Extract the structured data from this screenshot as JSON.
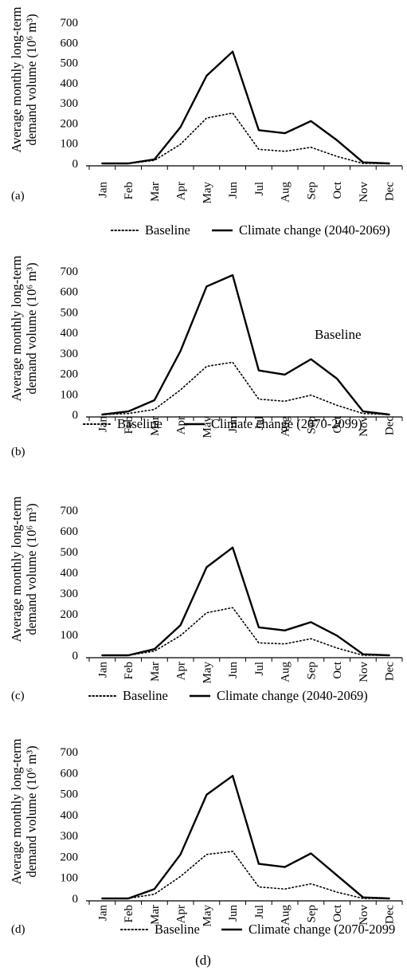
{
  "bottom_caption": "(d)",
  "chart_data": [
    {
      "type": "line",
      "panel_label": "(a)",
      "ylabel_lines": [
        "Average monthly long-term",
        "demand volume (10⁶ m³)"
      ],
      "categories": [
        "Jan",
        "Feb",
        "Mar",
        "Apr",
        "May",
        "Jun",
        "Jul",
        "Aug",
        "Sep",
        "Oct",
        "Nov",
        "Dec"
      ],
      "yticks": [
        0,
        100,
        200,
        300,
        400,
        500,
        600,
        700
      ],
      "ylim": [
        0,
        700
      ],
      "series": [
        {
          "name": "Baseline",
          "style": "dotted",
          "values": [
            0,
            0,
            15,
            95,
            225,
            250,
            70,
            60,
            80,
            35,
            0,
            0
          ]
        },
        {
          "name": "Climate change (2040-2069)",
          "style": "solid",
          "values": [
            0,
            0,
            20,
            180,
            435,
            555,
            165,
            150,
            210,
            115,
            5,
            0
          ]
        }
      ],
      "legend": {
        "baseline": "Baseline",
        "climate": "Climate change (2040-2069)"
      },
      "annotation": ""
    },
    {
      "type": "line",
      "panel_label": "(b)",
      "ylabel_lines": [
        "Average monthly long-term",
        "demand volume (10⁶ m³)"
      ],
      "categories": [
        "Jan",
        "Feb",
        "Mar",
        "Apr",
        "May",
        "Jun",
        "Jul",
        "Aug",
        "Sep",
        "Oct",
        "Nov",
        "Dec"
      ],
      "yticks": [
        0,
        100,
        200,
        300,
        400,
        500,
        600,
        700
      ],
      "ylim": [
        0,
        700
      ],
      "series": [
        {
          "name": "Baseline",
          "style": "dotted",
          "values": [
            0,
            5,
            25,
            120,
            235,
            255,
            75,
            65,
            95,
            45,
            5,
            0
          ]
        },
        {
          "name": "Climate change (2070-2099)",
          "style": "solid",
          "values": [
            0,
            15,
            70,
            310,
            625,
            680,
            215,
            195,
            270,
            175,
            15,
            0
          ]
        }
      ],
      "legend": {
        "baseline": "Baseline",
        "climate": "Climate change (2070-2099)"
      },
      "annotation": "Baseline"
    },
    {
      "type": "line",
      "panel_label": "(c)",
      "ylabel_lines": [
        "Average monthly long-term",
        "demand volume (10⁶ m³)"
      ],
      "categories": [
        "Jan",
        "Feb",
        "Mar",
        "Apr",
        "May",
        "Jun",
        "Jul",
        "Aug",
        "Sep",
        "Oct",
        "Nov",
        "Dec"
      ],
      "yticks": [
        0,
        100,
        200,
        300,
        400,
        500,
        600,
        700
      ],
      "ylim": [
        0,
        700
      ],
      "series": [
        {
          "name": "Baseline",
          "style": "dotted",
          "values": [
            0,
            0,
            20,
            95,
            205,
            230,
            60,
            55,
            80,
            35,
            0,
            0
          ]
        },
        {
          "name": "Climate change (2040-2069)",
          "style": "solid",
          "values": [
            0,
            0,
            30,
            145,
            425,
            520,
            135,
            120,
            160,
            95,
            5,
            0
          ]
        }
      ],
      "legend": {
        "baseline": "Baseline",
        "climate": "Climate change (2040-2069)"
      },
      "annotation": ""
    },
    {
      "type": "line",
      "panel_label": "(d)",
      "ylabel_lines": [
        "Average monthly long-term",
        "demand volume (10⁶ m³)"
      ],
      "categories": [
        "Jan",
        "Feb",
        "Mar",
        "Apr",
        "May",
        "Jun",
        "Jul",
        "Aug",
        "Sep",
        "Oct",
        "Nov",
        "Dec"
      ],
      "yticks": [
        0,
        100,
        200,
        300,
        400,
        500,
        600,
        700
      ],
      "ylim": [
        0,
        700
      ],
      "series": [
        {
          "name": "Baseline",
          "style": "dotted",
          "values": [
            0,
            0,
            20,
            105,
            210,
            225,
            55,
            45,
            70,
            30,
            0,
            0
          ]
        },
        {
          "name": "Climate change (2070-2099)",
          "style": "solid",
          "values": [
            0,
            0,
            45,
            210,
            495,
            585,
            165,
            150,
            215,
            110,
            5,
            0
          ]
        }
      ],
      "legend": {
        "baseline": "Baseline",
        "climate": "Climate change (2070-2099"
      },
      "annotation": ""
    }
  ]
}
